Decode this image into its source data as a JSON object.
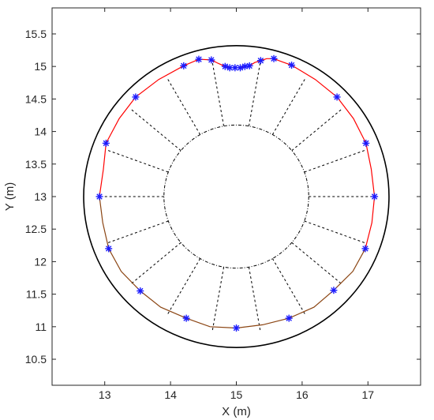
{
  "chart_data": {
    "type": "scatter",
    "xlabel": "X (m)",
    "ylabel": "Y (m)",
    "xlim": [
      12.2,
      17.8
    ],
    "ylim": [
      10.1,
      15.9
    ],
    "xticks": [
      "13",
      "14",
      "15",
      "16",
      "17"
    ],
    "yticks": [
      "10.5",
      "11",
      "11.5",
      "12",
      "12.5",
      "13",
      "13.5",
      "14",
      "14.5",
      "15",
      "15.5"
    ],
    "grid": false,
    "outer_circle": {
      "center": [
        15,
        13
      ],
      "radius": 2.32,
      "color": "#000000"
    },
    "inner_circle": {
      "center": [
        15,
        13
      ],
      "radius": 1.1,
      "color": "#000000",
      "style": "dash-dot"
    },
    "radial_lines": {
      "count": 18,
      "inner_radius": 1.1,
      "outer_radius": 2.1,
      "style": "dashed",
      "color": "#000000"
    },
    "marker_color": "#1a1aff",
    "markers": [
      [
        12.92,
        13.0
      ],
      [
        13.02,
        13.82
      ],
      [
        13.47,
        14.53
      ],
      [
        14.2,
        15.01
      ],
      [
        14.43,
        15.11
      ],
      [
        14.62,
        15.1
      ],
      [
        14.83,
        15.0
      ],
      [
        14.9,
        14.98
      ],
      [
        14.98,
        14.98
      ],
      [
        15.06,
        14.98
      ],
      [
        15.13,
        15.0
      ],
      [
        15.2,
        15.01
      ],
      [
        15.37,
        15.09
      ],
      [
        15.57,
        15.12
      ],
      [
        15.84,
        15.02
      ],
      [
        16.53,
        14.53
      ],
      [
        16.97,
        13.82
      ],
      [
        17.1,
        13.0
      ],
      [
        16.96,
        12.2
      ],
      [
        16.48,
        11.56
      ],
      [
        15.8,
        11.13
      ],
      [
        15.0,
        10.98
      ],
      [
        14.24,
        11.13
      ],
      [
        13.54,
        11.55
      ],
      [
        13.06,
        12.2
      ]
    ],
    "series": [
      {
        "color": "#ff0000",
        "values": [
          [
            12.92,
            13.0
          ],
          [
            12.98,
            13.42
          ],
          [
            13.02,
            13.82
          ],
          [
            13.22,
            14.2
          ],
          [
            13.47,
            14.53
          ],
          [
            13.82,
            14.8
          ],
          [
            14.2,
            15.01
          ],
          [
            14.43,
            15.11
          ],
          [
            14.62,
            15.1
          ],
          [
            14.72,
            15.05
          ],
          [
            14.83,
            15.0
          ],
          [
            14.9,
            14.98
          ],
          [
            14.98,
            14.98
          ],
          [
            15.06,
            14.98
          ],
          [
            15.13,
            15.0
          ],
          [
            15.2,
            15.01
          ],
          [
            15.28,
            15.06
          ],
          [
            15.37,
            15.09
          ],
          [
            15.46,
            15.12
          ],
          [
            15.57,
            15.12
          ],
          [
            15.7,
            15.07
          ],
          [
            15.84,
            15.02
          ],
          [
            16.2,
            14.8
          ],
          [
            16.53,
            14.53
          ],
          [
            16.78,
            14.2
          ],
          [
            16.97,
            13.82
          ],
          [
            17.05,
            13.42
          ],
          [
            17.1,
            13.0
          ],
          [
            17.06,
            12.6
          ],
          [
            16.96,
            12.2
          ]
        ]
      },
      {
        "color": "#8b4513",
        "values": [
          [
            16.96,
            12.2
          ],
          [
            16.77,
            11.85
          ],
          [
            16.48,
            11.56
          ],
          [
            16.18,
            11.3
          ],
          [
            15.8,
            11.13
          ],
          [
            15.4,
            11.03
          ],
          [
            15.0,
            10.98
          ],
          [
            14.6,
            11.0
          ],
          [
            14.24,
            11.13
          ],
          [
            13.85,
            11.3
          ],
          [
            13.54,
            11.55
          ],
          [
            13.25,
            11.85
          ],
          [
            13.06,
            12.2
          ],
          [
            12.97,
            12.6
          ],
          [
            12.92,
            13.0
          ]
        ]
      }
    ]
  }
}
